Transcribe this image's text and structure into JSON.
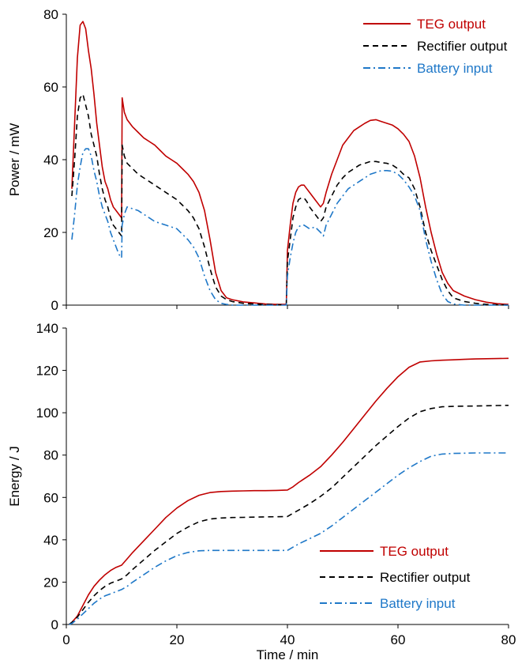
{
  "chart_data": [
    {
      "type": "line",
      "xlabel": "",
      "ylabel": "Power / mW",
      "xlim": [
        0,
        80
      ],
      "ylim": [
        0,
        80
      ],
      "xticks": [
        0,
        20,
        40,
        60,
        80
      ],
      "yticks": [
        0,
        20,
        40,
        60,
        80
      ],
      "x_tick_labels_visible": false,
      "grid": false,
      "legend_position": "top-right",
      "series": [
        {
          "name": "TEG output",
          "color": "#c00000",
          "dash": "solid",
          "x": [
            1,
            1.5,
            2,
            2.5,
            3,
            3.5,
            4,
            4.5,
            5,
            5.5,
            6,
            6.5,
            7,
            7.5,
            8,
            8.5,
            9,
            9.5,
            10,
            10.1,
            10.5,
            11,
            12,
            13,
            14,
            15,
            16,
            17,
            18,
            19,
            20,
            21,
            22,
            23,
            24,
            25,
            26,
            27,
            28,
            29,
            30,
            32,
            34,
            36,
            38,
            39.8,
            40,
            40.5,
            41,
            41.5,
            42,
            42.5,
            43,
            43.5,
            44,
            45,
            46,
            46.5,
            47,
            48,
            49,
            50,
            51,
            52,
            53,
            54,
            55,
            56,
            57,
            58,
            59,
            60,
            61,
            62,
            63,
            64,
            65,
            66,
            67,
            68,
            69,
            70,
            72,
            74,
            76,
            78,
            80
          ],
          "y": [
            32,
            50,
            68,
            77,
            78,
            76,
            70,
            65,
            58,
            50,
            44,
            38,
            34,
            32,
            29,
            27,
            26,
            25,
            24,
            57,
            53,
            51,
            49,
            47.5,
            46,
            45,
            44,
            42.5,
            41,
            40,
            39,
            37.5,
            36,
            34,
            31,
            26,
            18,
            9,
            4,
            2,
            1.5,
            0.9,
            0.6,
            0.3,
            0.2,
            0.2,
            15,
            22,
            28,
            31,
            32.5,
            33,
            33,
            32,
            31,
            29,
            27,
            28,
            31,
            36,
            40,
            44,
            46,
            48,
            49,
            50,
            50.8,
            51,
            50.5,
            50,
            49.5,
            48.5,
            47,
            45,
            41,
            35,
            27,
            20,
            14,
            9,
            6,
            4,
            2.5,
            1.5,
            0.8,
            0.4,
            0.2
          ]
        },
        {
          "name": "Rectifier output",
          "color": "#000000",
          "dash": "dashed",
          "x": [
            1,
            1.5,
            2,
            2.5,
            3,
            3.5,
            4,
            4.5,
            5,
            5.5,
            6,
            6.5,
            7,
            7.5,
            8,
            8.5,
            9,
            9.5,
            10,
            10.1,
            10.5,
            11,
            12,
            13,
            14,
            15,
            16,
            17,
            18,
            19,
            20,
            21,
            22,
            23,
            24,
            25,
            26,
            27,
            28,
            29,
            30,
            32,
            34,
            36,
            38,
            39.8,
            40,
            40.5,
            41,
            41.5,
            42,
            42.5,
            43,
            43.5,
            44,
            45,
            46,
            46.5,
            47,
            48,
            49,
            50,
            51,
            52,
            53,
            54,
            55,
            56,
            57,
            58,
            59,
            60,
            61,
            62,
            63,
            64,
            65,
            66,
            67,
            68,
            69,
            70,
            72,
            74,
            76,
            78,
            80
          ],
          "y": [
            30,
            40,
            52,
            57,
            58,
            55,
            52,
            47,
            44,
            41,
            36,
            32,
            29,
            27,
            24,
            22,
            21,
            20,
            19,
            44,
            41,
            39,
            37.5,
            36,
            35,
            34,
            33,
            32,
            31,
            30,
            29,
            27.5,
            26,
            24,
            21,
            16,
            10,
            5,
            2.5,
            1.5,
            1,
            0.5,
            0.3,
            0.2,
            0.1,
            0.1,
            12,
            18,
            24,
            27,
            29,
            29.5,
            29.5,
            28.5,
            27,
            25,
            23,
            24,
            27,
            30,
            33,
            35,
            36.5,
            37.5,
            38.5,
            39,
            39.5,
            39.5,
            39.2,
            39,
            38.5,
            37.5,
            36,
            35,
            32,
            27,
            20,
            15,
            11,
            7,
            4,
            2,
            1,
            0.5,
            0.2,
            0.1,
            0
          ]
        },
        {
          "name": "Battery input",
          "color": "#1f78c8",
          "dash": "dashdot",
          "x": [
            1,
            1.5,
            2,
            2.5,
            3,
            3.5,
            4,
            4.5,
            5,
            5.5,
            6,
            6.5,
            7,
            7.5,
            8,
            8.5,
            9,
            9.5,
            10,
            10.1,
            10.5,
            11,
            12,
            13,
            14,
            15,
            16,
            17,
            18,
            19,
            20,
            21,
            22,
            23,
            24,
            25,
            26,
            27,
            28,
            29,
            30,
            32,
            34,
            36,
            38,
            39.8,
            40,
            40.5,
            41,
            41.5,
            42,
            42.5,
            43,
            43.5,
            44,
            45,
            46,
            46.5,
            47,
            48,
            49,
            50,
            51,
            52,
            53,
            54,
            55,
            56,
            57,
            58,
            59,
            60,
            61,
            62,
            63,
            64,
            65,
            66,
            67,
            68,
            69,
            70,
            72,
            74,
            76,
            78,
            80
          ],
          "y": [
            18,
            25,
            33,
            38,
            42,
            43,
            43,
            41,
            37,
            34,
            30,
            27,
            25,
            23,
            20,
            18,
            16,
            14,
            13,
            22,
            25,
            27,
            26.5,
            26,
            25,
            24,
            23,
            22.5,
            22,
            21.5,
            21,
            19.5,
            18,
            16,
            13,
            8,
            4,
            1.5,
            0.5,
            0.2,
            0,
            0,
            0,
            0,
            0,
            0,
            8,
            13,
            17,
            20,
            21.5,
            22,
            22,
            21.5,
            21,
            21.5,
            20,
            19,
            22,
            25,
            28,
            30,
            32,
            33,
            34,
            35,
            36,
            36.5,
            37,
            37,
            36.8,
            36,
            34.5,
            32.5,
            30,
            26,
            18,
            12,
            7,
            3,
            1,
            0.3,
            0,
            0,
            0,
            0,
            0
          ]
        }
      ]
    },
    {
      "type": "line",
      "xlabel": "Time / min",
      "ylabel": "Energy / J",
      "xlim": [
        0,
        80
      ],
      "ylim": [
        0,
        140
      ],
      "xticks": [
        0,
        20,
        40,
        60,
        80
      ],
      "yticks": [
        0,
        20,
        40,
        60,
        80,
        100,
        120,
        140
      ],
      "x_tick_labels_visible": true,
      "grid": false,
      "legend_position": "bottom-right",
      "series": [
        {
          "name": "TEG output",
          "color": "#c00000",
          "dash": "solid",
          "x": [
            0.5,
            1,
            2,
            3,
            4,
            5,
            6,
            7,
            8,
            9,
            10,
            11,
            12,
            14,
            16,
            18,
            20,
            22,
            24,
            26,
            28,
            30,
            32,
            34,
            36,
            38,
            40,
            41,
            42,
            44,
            46,
            48,
            50,
            52,
            54,
            56,
            58,
            60,
            62,
            64,
            66,
            68,
            70,
            72,
            74,
            76,
            78,
            80
          ],
          "y": [
            0,
            1,
            4,
            9,
            14,
            18,
            21,
            23.5,
            25.5,
            27,
            28,
            31,
            34,
            39.5,
            45,
            50.5,
            55,
            58.5,
            61,
            62.3,
            62.8,
            63,
            63.1,
            63.2,
            63.2,
            63.3,
            63.5,
            65,
            67,
            70.5,
            74.5,
            80,
            86,
            92.5,
            99,
            105.5,
            111.5,
            117,
            121.5,
            124,
            124.5,
            124.8,
            125,
            125.2,
            125.4,
            125.5,
            125.6,
            125.7
          ]
        },
        {
          "name": "Rectifier output",
          "color": "#000000",
          "dash": "dashed",
          "x": [
            0.5,
            1,
            2,
            3,
            4,
            5,
            6,
            7,
            8,
            9,
            10,
            11,
            12,
            14,
            16,
            18,
            20,
            22,
            24,
            26,
            28,
            30,
            32,
            34,
            36,
            38,
            40,
            41,
            42,
            44,
            46,
            48,
            50,
            52,
            54,
            56,
            58,
            60,
            62,
            64,
            66,
            68,
            70,
            72,
            74,
            76,
            78,
            80
          ],
          "y": [
            0,
            1,
            3.5,
            7,
            10.5,
            13.5,
            16,
            18,
            19.5,
            20.5,
            21.5,
            23.5,
            26,
            30.5,
            35,
            39,
            43,
            46,
            48.5,
            49.8,
            50.3,
            50.5,
            50.6,
            50.7,
            50.8,
            50.9,
            51,
            52.5,
            54,
            57,
            60.5,
            64.5,
            69.5,
            74.5,
            79.5,
            84.5,
            89,
            93.5,
            97.5,
            100.5,
            102,
            102.8,
            103,
            103.1,
            103.2,
            103.3,
            103.4,
            103.5
          ]
        },
        {
          "name": "Battery input",
          "color": "#1f78c8",
          "dash": "dashdot",
          "x": [
            0.5,
            1,
            2,
            3,
            4,
            5,
            6,
            7,
            8,
            9,
            10,
            11,
            12,
            14,
            16,
            18,
            20,
            22,
            24,
            26,
            28,
            30,
            32,
            34,
            36,
            38,
            40,
            41,
            42,
            44,
            46,
            48,
            50,
            52,
            54,
            56,
            58,
            60,
            62,
            64,
            66,
            68,
            70,
            72,
            74,
            76,
            78,
            80
          ],
          "y": [
            0,
            0.5,
            2.5,
            5,
            7.5,
            10,
            12,
            13.5,
            14.5,
            15.5,
            16.5,
            18,
            20,
            23.5,
            27,
            30,
            32.5,
            34,
            34.8,
            35,
            35,
            35,
            35,
            35,
            35,
            35,
            35,
            36.5,
            38,
            40.5,
            43,
            46.5,
            50.5,
            54.5,
            58.5,
            62.5,
            66.5,
            70.5,
            74,
            77,
            79.5,
            80.5,
            80.8,
            80.9,
            81,
            81,
            81,
            81
          ]
        }
      ]
    }
  ]
}
